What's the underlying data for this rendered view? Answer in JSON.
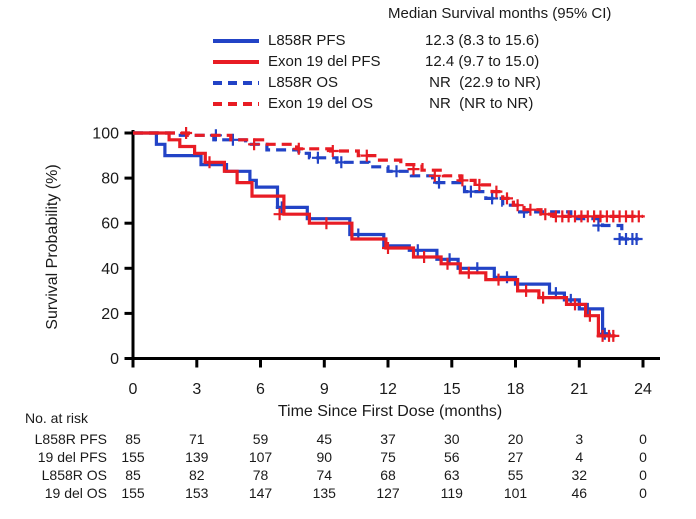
{
  "figure": {
    "legend": {
      "title": "Median Survival months (95% CI)",
      "rows": [
        {
          "label": "L858R PFS",
          "value": "12.3 (8.3 to 15.6)",
          "series": "l858r_pfs"
        },
        {
          "label": "Exon 19 del PFS",
          "value": "12.4 (9.7 to 15.0)",
          "series": "exon19_pfs"
        },
        {
          "label": "L858R OS",
          "value": " NR  (22.9 to NR)",
          "series": "l858r_os"
        },
        {
          "label": "Exon 19 del OS",
          "value": " NR  (NR to NR)",
          "series": "exon19_os"
        }
      ]
    },
    "colors": {
      "blue": "#2243C6",
      "red": "#E81C24",
      "axis": "#000000",
      "text": "#1a1a1a"
    }
  },
  "chart_data": {
    "type": "line",
    "subtype": "kaplan-meier-step",
    "title": "Median Survival months (95% CI)",
    "xlabel": "Time Since First Dose (months)",
    "ylabel": "Survival Probability (%)",
    "xlim": [
      0,
      24
    ],
    "ylim": [
      0,
      100
    ],
    "x_ticks": [
      0,
      3,
      6,
      9,
      12,
      15,
      18,
      21,
      24
    ],
    "y_ticks": [
      0,
      20,
      40,
      60,
      80,
      100
    ],
    "grid": false,
    "legend_position": "top",
    "series": [
      {
        "id": "l858r_pfs",
        "name": "L858R PFS",
        "color": "#2243C6",
        "style": "solid",
        "median": "12.3 (8.3 to 15.6)",
        "steps": [
          [
            0,
            100
          ],
          [
            1.1,
            95
          ],
          [
            1.5,
            90
          ],
          [
            3.2,
            86
          ],
          [
            4.4,
            83
          ],
          [
            5.5,
            79
          ],
          [
            5.8,
            76
          ],
          [
            6.8,
            67
          ],
          [
            8.2,
            62
          ],
          [
            10.2,
            55
          ],
          [
            11.8,
            50
          ],
          [
            13.0,
            48
          ],
          [
            14.3,
            44
          ],
          [
            15.3,
            40
          ],
          [
            17.0,
            36
          ],
          [
            18.0,
            33
          ],
          [
            19.6,
            29
          ],
          [
            20.3,
            26
          ],
          [
            21.0,
            22
          ],
          [
            22.1,
            11
          ]
        ],
        "end_t": 22.35,
        "censors": [
          [
            7.0,
            67
          ],
          [
            10.6,
            55
          ],
          [
            13.4,
            48
          ],
          [
            14.9,
            44
          ],
          [
            16.2,
            40
          ],
          [
            17.6,
            36
          ],
          [
            19.9,
            29
          ],
          [
            20.6,
            26
          ],
          [
            21.4,
            22
          ],
          [
            22.2,
            11
          ]
        ]
      },
      {
        "id": "exon19_pfs",
        "name": "Exon 19 del PFS",
        "color": "#E81C24",
        "style": "solid",
        "median": "12.4 (9.7 to 15.0)",
        "steps": [
          [
            0,
            100
          ],
          [
            1.7,
            97
          ],
          [
            2.2,
            94
          ],
          [
            2.9,
            91
          ],
          [
            3.4,
            87
          ],
          [
            4.3,
            83
          ],
          [
            4.9,
            78
          ],
          [
            5.6,
            72
          ],
          [
            7.1,
            64
          ],
          [
            8.3,
            60
          ],
          [
            10.3,
            53
          ],
          [
            11.9,
            49
          ],
          [
            13.2,
            45
          ],
          [
            14.5,
            42
          ],
          [
            15.4,
            38
          ],
          [
            16.6,
            35
          ],
          [
            18.1,
            30
          ],
          [
            19.1,
            27
          ],
          [
            20.4,
            24
          ],
          [
            21.3,
            19
          ],
          [
            21.9,
            10
          ]
        ],
        "end_t": 22.7,
        "censors": [
          [
            3.6,
            87
          ],
          [
            6.9,
            64
          ],
          [
            9.1,
            60
          ],
          [
            12.0,
            49
          ],
          [
            13.7,
            45
          ],
          [
            14.8,
            42
          ],
          [
            15.8,
            38
          ],
          [
            17.2,
            35
          ],
          [
            18.5,
            30
          ],
          [
            19.3,
            27
          ],
          [
            20.8,
            24
          ],
          [
            21.5,
            19
          ],
          [
            22.1,
            10
          ],
          [
            22.4,
            10
          ],
          [
            22.6,
            10
          ]
        ]
      },
      {
        "id": "l858r_os",
        "name": "L858R OS",
        "color": "#2243C6",
        "style": "dashed",
        "median": "NR (22.9 to NR)",
        "steps": [
          [
            0,
            100
          ],
          [
            2.1,
            99
          ],
          [
            3.8,
            97
          ],
          [
            5.3,
            95
          ],
          [
            6.3,
            92.5
          ],
          [
            7.8,
            91
          ],
          [
            8.3,
            89
          ],
          [
            9.6,
            87
          ],
          [
            11.1,
            85
          ],
          [
            12.0,
            83
          ],
          [
            13.1,
            81
          ],
          [
            14.1,
            78
          ],
          [
            15.6,
            74
          ],
          [
            16.6,
            71
          ],
          [
            17.4,
            68
          ],
          [
            18.1,
            65
          ],
          [
            20.6,
            62
          ],
          [
            22.1,
            59
          ],
          [
            23.0,
            53
          ]
        ],
        "end_t": 23.8,
        "censors": [
          [
            3.9,
            99
          ],
          [
            4.7,
            97
          ],
          [
            8.7,
            89
          ],
          [
            9.8,
            87
          ],
          [
            12.4,
            83
          ],
          [
            14.4,
            78
          ],
          [
            15.9,
            74
          ],
          [
            16.9,
            71
          ],
          [
            18.4,
            65
          ],
          [
            21.9,
            59
          ],
          [
            22.9,
            53
          ],
          [
            23.2,
            53
          ],
          [
            23.5,
            53
          ],
          [
            23.7,
            53
          ]
        ]
      },
      {
        "id": "exon19_os",
        "name": "Exon 19 del OS",
        "color": "#E81C24",
        "style": "dashed",
        "median": "NR (NR to NR)",
        "steps": [
          [
            0,
            100
          ],
          [
            2.6,
            99
          ],
          [
            4.6,
            97
          ],
          [
            6.1,
            95
          ],
          [
            7.7,
            93
          ],
          [
            9.3,
            92
          ],
          [
            10.6,
            90
          ],
          [
            11.6,
            88
          ],
          [
            12.6,
            86
          ],
          [
            13.6,
            83.5
          ],
          [
            14.6,
            81
          ],
          [
            15.4,
            79
          ],
          [
            16.1,
            77
          ],
          [
            16.9,
            74
          ],
          [
            17.4,
            71
          ],
          [
            17.9,
            68
          ],
          [
            18.4,
            66
          ],
          [
            19.2,
            64
          ],
          [
            19.8,
            63
          ]
        ],
        "end_t": 24.0,
        "censors": [
          [
            2.5,
            100
          ],
          [
            5.7,
            95
          ],
          [
            7.8,
            93
          ],
          [
            9.4,
            92
          ],
          [
            11.0,
            90
          ],
          [
            13.2,
            84
          ],
          [
            14.2,
            81
          ],
          [
            15.5,
            79
          ],
          [
            16.3,
            77
          ],
          [
            17.1,
            74
          ],
          [
            17.6,
            71
          ],
          [
            18.1,
            68
          ],
          [
            18.7,
            66
          ],
          [
            19.4,
            64
          ],
          [
            19.9,
            63
          ],
          [
            20.2,
            63
          ],
          [
            20.5,
            63
          ],
          [
            20.8,
            63
          ],
          [
            21.1,
            63
          ],
          [
            21.4,
            63
          ],
          [
            21.7,
            63
          ],
          [
            22.0,
            63
          ],
          [
            22.3,
            63
          ],
          [
            22.6,
            63
          ],
          [
            22.9,
            63
          ],
          [
            23.2,
            63
          ],
          [
            23.5,
            63
          ],
          [
            23.8,
            63
          ]
        ]
      }
    ]
  },
  "risk_table": {
    "header": "No. at risk",
    "time_points": [
      0,
      3,
      6,
      9,
      12,
      15,
      18,
      21,
      24
    ],
    "rows": [
      {
        "label": "L858R PFS",
        "values": [
          85,
          71,
          59,
          45,
          37,
          30,
          20,
          3,
          0
        ]
      },
      {
        "label": "19 del PFS",
        "values": [
          155,
          139,
          107,
          90,
          75,
          56,
          27,
          4,
          0
        ]
      },
      {
        "label": "L858R OS",
        "values": [
          85,
          82,
          78,
          74,
          68,
          63,
          55,
          32,
          0
        ]
      },
      {
        "label": "19 del OS",
        "values": [
          155,
          153,
          147,
          135,
          127,
          119,
          101,
          46,
          0
        ]
      }
    ]
  }
}
